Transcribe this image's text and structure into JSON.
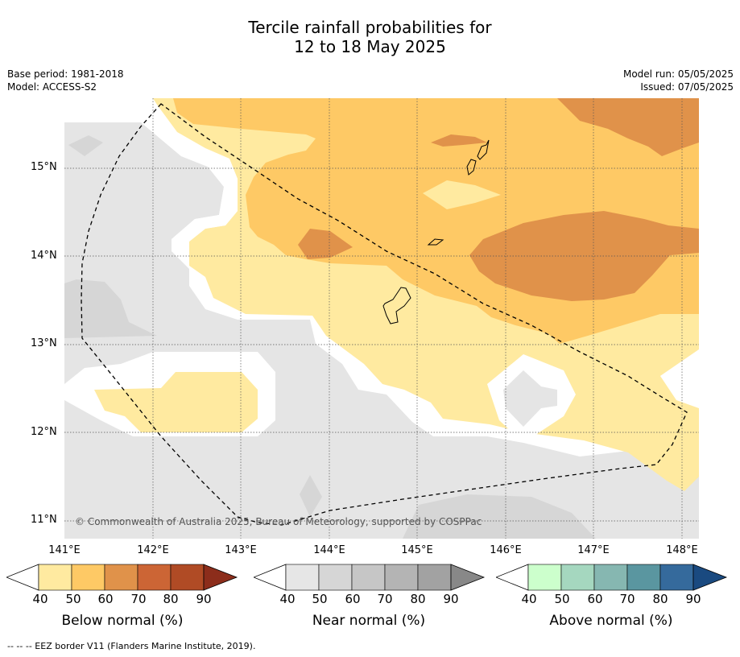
{
  "title_line1": "Tercile rainfall probabilities for",
  "title_line2": "12 to 18 May 2025",
  "base_period": "Base period: 1981-2018",
  "model": "Model: ACCESS-S2",
  "model_run": "Model run: 05/05/2025",
  "issued": "Issued: 07/05/2025",
  "latitudes": [
    "15°N",
    "14°N",
    "13°N",
    "12°N",
    "11°N"
  ],
  "longitudes": [
    "141°E",
    "142°E",
    "143°E",
    "144°E",
    "145°E",
    "146°E",
    "147°E",
    "148°E"
  ],
  "copyright": "© Commonwealth of Australia 2025, Bureau of Meteorology, supported by COSPPac",
  "colorbars": [
    {
      "label": "Below normal (%)",
      "ticks": [
        "40",
        "50",
        "60",
        "70",
        "80",
        "90"
      ],
      "colors": [
        "#ffeaa0",
        "#fec965",
        "#e0924a",
        "#cc6535",
        "#b04b25",
        "#8c2d1b"
      ]
    },
    {
      "label": "Near normal (%)",
      "ticks": [
        "40",
        "50",
        "60",
        "70",
        "80",
        "90"
      ],
      "colors": [
        "#e6e6e6",
        "#d6d6d6",
        "#c6c6c6",
        "#b4b4b4",
        "#a2a2a2",
        "#888888"
      ]
    },
    {
      "label": "Above normal (%)",
      "ticks": [
        "40",
        "50",
        "60",
        "70",
        "80",
        "90"
      ],
      "colors": [
        "#ccffcc",
        "#a5d7bf",
        "#86b7b1",
        "#5a96a0",
        "#356a9c",
        "#1a4a80"
      ]
    }
  ],
  "footnote": "--  --  -- EEZ border V11 (Flanders Marine Institute, 2019).",
  "map_colors": {
    "near50": "#d6d6d6",
    "near40": "#e5e5e5",
    "below40": "#ffeaa0",
    "below50": "#fec965",
    "below60": "#e0924a"
  }
}
